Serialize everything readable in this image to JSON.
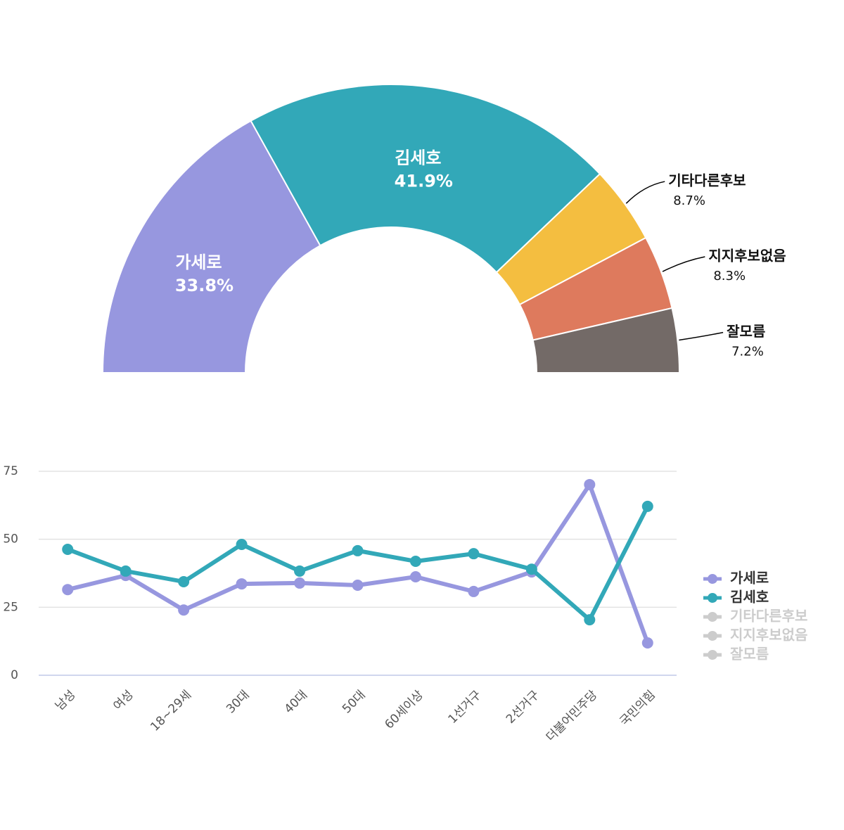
{
  "chart_data": [
    {
      "type": "pie",
      "categories": [
        "가세로",
        "김세호",
        "기타다른후보",
        "지지후보없음",
        "잘모름"
      ],
      "values": [
        33.8,
        41.9,
        8.7,
        8.3,
        7.2
      ],
      "value_labels": [
        "33.8%",
        "41.9%",
        "8.7%",
        "8.3%",
        "7.2%"
      ],
      "colors": [
        "#9797df",
        "#32a8b8",
        "#f4be40",
        "#de7a5d",
        "#736a67"
      ]
    },
    {
      "type": "line",
      "categories": [
        "남성",
        "여성",
        "18~29세",
        "30대",
        "40대",
        "50대",
        "60세이상",
        "1선거구",
        "2선거구",
        "더불어민주당",
        "국민의힘"
      ],
      "series": [
        {
          "name": "가세로",
          "color": "#9797df",
          "values": [
            31.5,
            36.7,
            24.0,
            33.6,
            33.9,
            33.1,
            36.2,
            30.8,
            38.0,
            70.1,
            11.9
          ]
        },
        {
          "name": "김세호",
          "color": "#32a8b8",
          "values": [
            46.3,
            38.3,
            34.4,
            48.1,
            38.3,
            45.8,
            41.9,
            44.7,
            39.0,
            20.4,
            62.1
          ]
        },
        {
          "name": "기타다른후보",
          "color": "#cccccc",
          "hidden": true
        },
        {
          "name": "지지후보없음",
          "color": "#cccccc",
          "hidden": true
        },
        {
          "name": "잘모름",
          "color": "#cccccc",
          "hidden": true
        }
      ],
      "ylim": [
        0,
        75
      ],
      "yticks": [
        0,
        25,
        50,
        75
      ],
      "grid": true,
      "legend": "right"
    }
  ]
}
